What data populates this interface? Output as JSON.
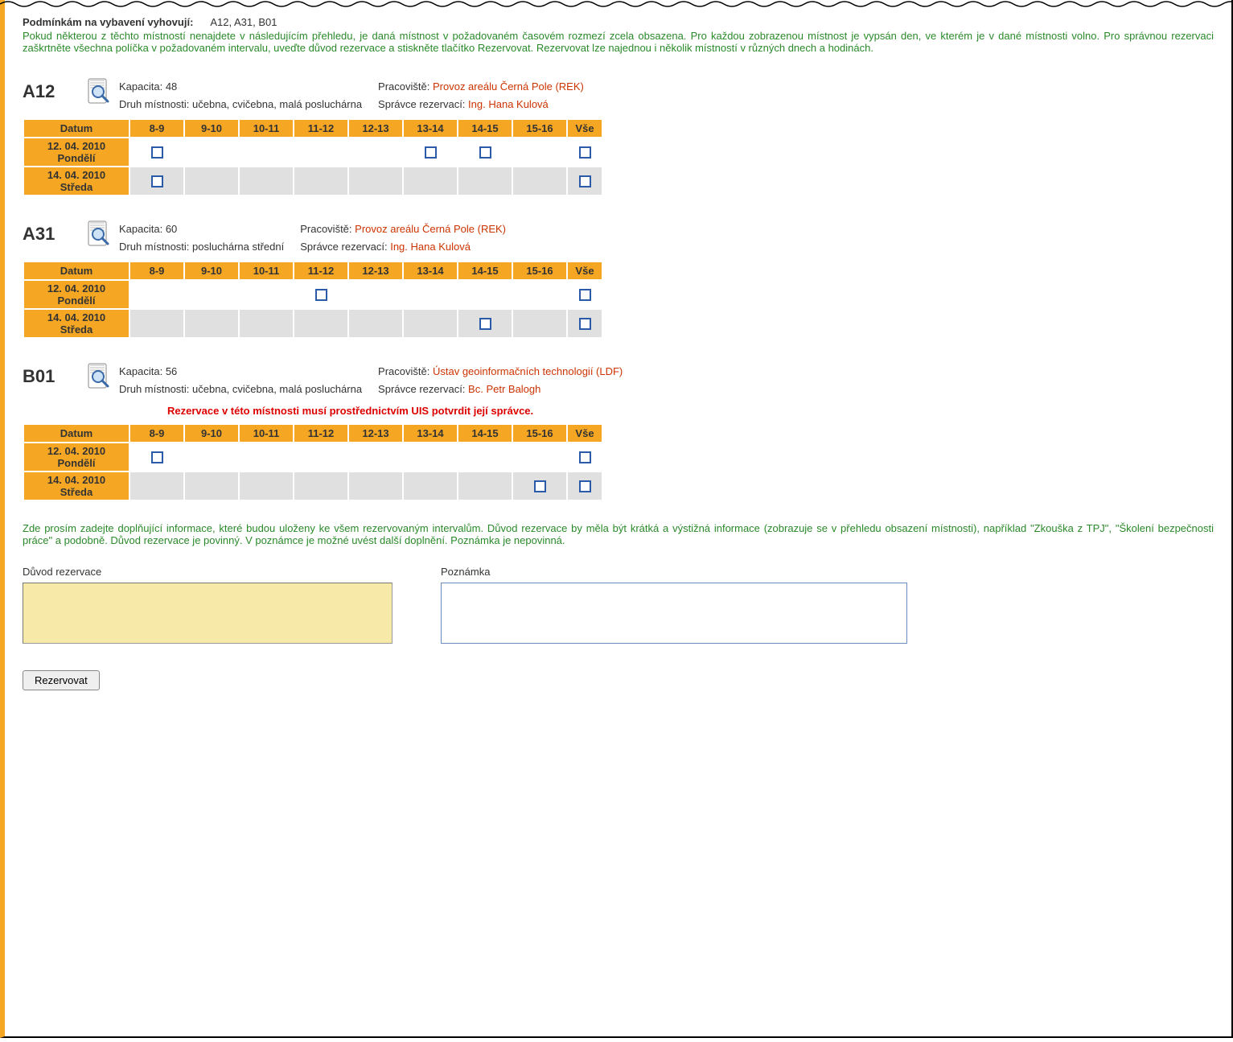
{
  "colors": {
    "accent_orange": "#f5a623",
    "text_green": "#2a8a2a",
    "link_red": "#cc3300",
    "checkbox_border": "#2a5aa8",
    "grey_row": "#e0e0e0",
    "reason_bg": "#f7e9a8"
  },
  "intro": {
    "heading_label": "Podmínkám na vybavení vyhovují:",
    "heading_rooms": "A12, A31, B01",
    "paragraph1": "Pokud některou z těchto místností nenajdete v následujícím přehledu, je daná místnost v požadovaném časovém rozmezí zcela obsazena. Pro každou zobrazenou místnost je vypsán den, ve kterém je v dané místnosti volno. Pro správnou rezervaci zaškrtněte všechna políčka v požadovaném intervalu, uveďte důvod rezervace a stiskněte tlačítko Rezervovat. Rezervovat lze najednou i několik místností v různých dnech a hodinách."
  },
  "time_headers": [
    "Datum",
    "8-9",
    "9-10",
    "10-11",
    "11-12",
    "12-13",
    "13-14",
    "14-15",
    "15-16",
    "Vše"
  ],
  "rooms": [
    {
      "code": "A12",
      "capacity_label": "Kapacita: 48",
      "type_label": "Druh místnosti: učebna, cvičebna, malá posluchárna",
      "dept_label": "Pracoviště:",
      "dept_link": "Provoz areálu Černá Pole (REK)",
      "admin_label": "Správce rezervací:",
      "admin_link": "Ing. Hana Kulová",
      "rows": [
        {
          "date_line1": "12. 04. 2010",
          "date_line2": "Pondělí",
          "grey": false,
          "slots": [
            true,
            false,
            false,
            false,
            false,
            true,
            true,
            false,
            true
          ]
        },
        {
          "date_line1": "14. 04. 2010",
          "date_line2": "Středa",
          "grey": true,
          "slots": [
            true,
            false,
            false,
            false,
            false,
            false,
            false,
            false,
            true
          ]
        }
      ]
    },
    {
      "code": "A31",
      "capacity_label": "Kapacita: 60",
      "type_label": "Druh místnosti: posluchárna střední",
      "dept_label": "Pracoviště:",
      "dept_link": "Provoz areálu Černá Pole (REK)",
      "admin_label": "Správce rezervací:",
      "admin_link": "Ing. Hana Kulová",
      "rows": [
        {
          "date_line1": "12. 04. 2010",
          "date_line2": "Pondělí",
          "grey": false,
          "slots": [
            false,
            false,
            false,
            true,
            false,
            false,
            false,
            false,
            true
          ]
        },
        {
          "date_line1": "14. 04. 2010",
          "date_line2": "Středa",
          "grey": true,
          "slots": [
            false,
            false,
            false,
            false,
            false,
            false,
            true,
            false,
            true
          ]
        }
      ]
    },
    {
      "code": "B01",
      "capacity_label": "Kapacita: 56",
      "type_label": "Druh místnosti: učebna, cvičebna, malá posluchárna",
      "dept_label": "Pracoviště:",
      "dept_link": "Ústav geoinformačních technologií (LDF)",
      "admin_label": "Správce rezervací:",
      "admin_link": "Bc. Petr Balogh",
      "warning": "Rezervace v této místnosti musí prostřednictvím UIS potvrdit její správce.",
      "rows": [
        {
          "date_line1": "12. 04. 2010",
          "date_line2": "Pondělí",
          "grey": false,
          "slots": [
            true,
            false,
            false,
            false,
            false,
            false,
            false,
            false,
            true
          ]
        },
        {
          "date_line1": "14. 04. 2010",
          "date_line2": "Středa",
          "grey": true,
          "slots": [
            false,
            false,
            false,
            false,
            false,
            false,
            false,
            true,
            true
          ]
        }
      ]
    }
  ],
  "paragraph2": "Zde prosím zadejte doplňující informace, které budou uloženy ke všem rezervovaným intervalům. Důvod rezervace by měla být krátká a výstižná informace (zobrazuje se v přehledu obsazení místnosti), například \"Zkouška z TPJ\", \"Školení bezpečnosti práce\" a podobně. Důvod rezervace je povinný. V poznámce je možné uvést další doplnění. Poznámka je nepovinná.",
  "form": {
    "reason_label": "Důvod rezervace",
    "reason_value": "",
    "note_label": "Poznámka",
    "note_value": "",
    "submit_label": "Rezervovat"
  }
}
